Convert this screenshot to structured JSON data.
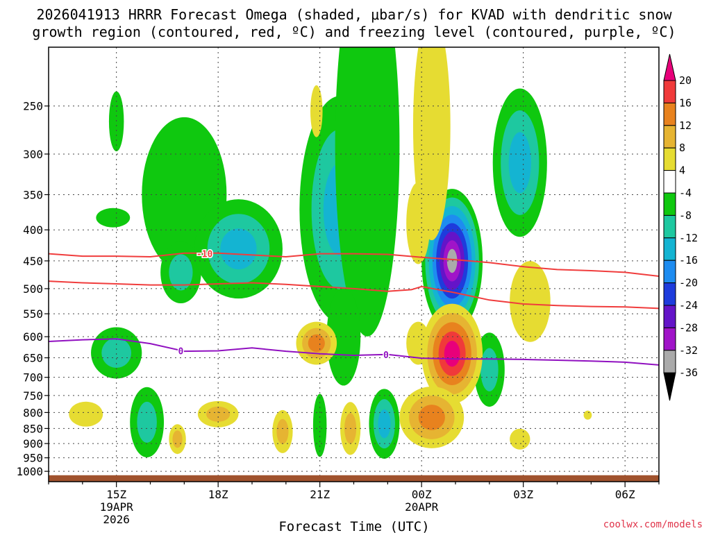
{
  "chart_data": {
    "type": "time-pressure cross section",
    "title_line1": "2026041913 HRRR Forecast Omega (shaded, μbar/s) for KVAD with dendritic snow",
    "title_line2": "growth region (contoured, red, ºC) and freezing level (contoured, purple, ºC)",
    "xlabel": "Forecast Time (UTC)",
    "credit": "coolwx.com/models",
    "x_range_hours": [
      13.0,
      31.0
    ],
    "x_ticks": [
      {
        "hour": 15,
        "label": "15Z",
        "sub1": "19APR",
        "sub2": "2026"
      },
      {
        "hour": 18,
        "label": "18Z",
        "sub1": "",
        "sub2": ""
      },
      {
        "hour": 21,
        "label": "21Z",
        "sub1": "",
        "sub2": ""
      },
      {
        "hour": 24,
        "label": "00Z",
        "sub1": "20APR",
        "sub2": ""
      },
      {
        "hour": 27,
        "label": "03Z",
        "sub1": "",
        "sub2": ""
      },
      {
        "hour": 30,
        "label": "06Z",
        "sub1": "",
        "sub2": ""
      }
    ],
    "y_range_hpa": [
      1040,
      200
    ],
    "y_ticks": [
      {
        "p": 250,
        "label": "250"
      },
      {
        "p": 300,
        "label": "300"
      },
      {
        "p": 350,
        "label": "350"
      },
      {
        "p": 400,
        "label": "400"
      },
      {
        "p": 450,
        "label": "450"
      },
      {
        "p": 500,
        "label": "500"
      },
      {
        "p": 550,
        "label": "550"
      },
      {
        "p": 600,
        "label": "600"
      },
      {
        "p": 650,
        "label": "650"
      },
      {
        "p": 700,
        "label": "700"
      },
      {
        "p": 750,
        "label": "750"
      },
      {
        "p": 800,
        "label": "800"
      },
      {
        "p": 850,
        "label": "850"
      },
      {
        "p": 900,
        "label": "900"
      },
      {
        "p": 950,
        "label": "950"
      },
      {
        "p": 1000,
        "label": "1000"
      }
    ],
    "ground_pressure_hpa": 1015,
    "colorbar": [
      {
        "color": "#e8007a",
        "label": "20"
      },
      {
        "color": "#f03a3a",
        "label": "16"
      },
      {
        "color": "#e8821e",
        "label": "12"
      },
      {
        "color": "#e6b432",
        "label": "8"
      },
      {
        "color": "#e6dc32",
        "label": "4"
      },
      {
        "color": "#ffffff",
        "label": "-4"
      },
      {
        "color": "#0fc80f",
        "label": "-8"
      },
      {
        "color": "#1ec8a0",
        "label": "-12"
      },
      {
        "color": "#14b4d2",
        "label": "-16"
      },
      {
        "color": "#1e8cf0",
        "label": "-20"
      },
      {
        "color": "#1e3cdc",
        "label": "-24"
      },
      {
        "color": "#6414c8",
        "label": "-28"
      },
      {
        "color": "#a014c8",
        "label": "-32"
      },
      {
        "color": "#aaaaaa",
        "label": "-36"
      },
      {
        "color": "#000000",
        "label": ""
      }
    ],
    "contours": [
      {
        "name": "dgz-10C",
        "color": "#f03c3c",
        "label": "-10",
        "label_hour": 17.6,
        "points": [
          [
            13.0,
            438
          ],
          [
            14.0,
            442
          ],
          [
            15.0,
            442
          ],
          [
            16.0,
            443
          ],
          [
            17.0,
            437
          ],
          [
            18.0,
            437
          ],
          [
            19.0,
            440
          ],
          [
            20.0,
            443
          ],
          [
            21.0,
            438
          ],
          [
            22.0,
            438
          ],
          [
            23.0,
            439
          ],
          [
            24.0,
            444
          ],
          [
            25.0,
            448
          ],
          [
            26.0,
            453
          ],
          [
            27.0,
            460
          ],
          [
            28.0,
            465
          ],
          [
            29.0,
            467
          ],
          [
            30.0,
            470
          ],
          [
            31.0,
            477
          ]
        ]
      },
      {
        "name": "dgz-16C",
        "color": "#f03c3c",
        "label": "",
        "label_hour": 0,
        "points": [
          [
            13.0,
            486
          ],
          [
            14.0,
            489
          ],
          [
            15.0,
            491
          ],
          [
            16.0,
            493
          ],
          [
            17.0,
            493
          ],
          [
            18.0,
            491
          ],
          [
            19.0,
            489
          ],
          [
            20.0,
            492
          ],
          [
            21.0,
            496
          ],
          [
            22.0,
            500
          ],
          [
            23.0,
            505
          ],
          [
            23.7,
            502
          ],
          [
            24.0,
            496
          ],
          [
            25.0,
            508
          ],
          [
            26.0,
            522
          ],
          [
            27.0,
            530
          ],
          [
            28.0,
            533
          ],
          [
            29.0,
            535
          ],
          [
            30.0,
            536
          ],
          [
            31.0,
            539
          ]
        ]
      },
      {
        "name": "freezing-level-0C",
        "color": "#9010c0",
        "label": "0",
        "label_hour": 16.9,
        "points": [
          [
            13.0,
            611
          ],
          [
            14.0,
            607
          ],
          [
            15.0,
            605
          ],
          [
            16.0,
            616
          ],
          [
            17.0,
            634
          ],
          [
            18.0,
            633
          ],
          [
            19.0,
            626
          ],
          [
            20.0,
            634
          ],
          [
            21.0,
            640
          ],
          [
            22.0,
            644
          ],
          [
            23.0,
            642
          ],
          [
            24.0,
            651
          ],
          [
            25.0,
            653
          ],
          [
            26.0,
            653
          ],
          [
            27.0,
            654
          ],
          [
            28.0,
            656
          ],
          [
            29.0,
            658
          ],
          [
            30.0,
            661
          ],
          [
            31.0,
            668
          ]
        ]
      }
    ],
    "contour_labels": [
      {
        "text": "-10",
        "hour": 17.6,
        "p": 438,
        "color": "#f03c3c"
      },
      {
        "text": "0",
        "hour": 16.9,
        "p": 633,
        "color": "#9010c0"
      },
      {
        "text": "0",
        "hour": 22.95,
        "p": 642,
        "color": "#9010c0"
      }
    ],
    "omega_blobs": [
      {
        "cx": 15.0,
        "p": 265,
        "rx": 0.22,
        "ry": 30,
        "levels": [
          -4
        ]
      },
      {
        "cx": 14.9,
        "p": 382,
        "rx": 0.5,
        "ry": 14,
        "levels": [
          -4
        ]
      },
      {
        "cx": 15.0,
        "p": 638,
        "rx": 0.75,
        "ry": 62,
        "levels": [
          -4,
          -8
        ]
      },
      {
        "cx": 17.0,
        "p": 350,
        "rx": 1.25,
        "ry": 100,
        "levels": [
          -4
        ]
      },
      {
        "cx": 16.9,
        "p": 470,
        "rx": 0.6,
        "ry": 55,
        "levels": [
          -4,
          -8
        ]
      },
      {
        "cx": 18.6,
        "p": 430,
        "rx": 1.3,
        "ry": 80,
        "levels": [
          -4,
          -8,
          -12
        ]
      },
      {
        "cx": 15.9,
        "p": 830,
        "rx": 0.5,
        "ry": 110,
        "levels": [
          -4,
          -8
        ]
      },
      {
        "cx": 21.6,
        "p": 370,
        "rx": 1.2,
        "ry": 150,
        "levels": [
          -4,
          -8,
          -12
        ]
      },
      {
        "cx": 22.4,
        "p": 290,
        "rx": 0.95,
        "ry": 180,
        "levels": [
          -4
        ]
      },
      {
        "cx": 21.7,
        "p": 600,
        "rx": 0.5,
        "ry": 110,
        "levels": [
          -4
        ]
      },
      {
        "cx": 21.0,
        "p": 840,
        "rx": 0.2,
        "ry": 100,
        "levels": [
          -4
        ]
      },
      {
        "cx": 22.9,
        "p": 835,
        "rx": 0.45,
        "ry": 110,
        "levels": [
          -4,
          -8,
          -12
        ]
      },
      {
        "cx": 24.9,
        "p": 450,
        "rx": 0.9,
        "ry": 120,
        "levels": [
          -4,
          -8,
          -12,
          -16,
          -20,
          -24,
          -28,
          -32
        ]
      },
      {
        "cx": 26.9,
        "p": 310,
        "rx": 0.8,
        "ry": 85,
        "levels": [
          -4,
          -8,
          -12
        ]
      },
      {
        "cx": 26.0,
        "p": 680,
        "rx": 0.45,
        "ry": 95,
        "levels": [
          -4,
          -8
        ]
      },
      {
        "cx": 14.1,
        "p": 805,
        "rx": 0.5,
        "ry": 38,
        "levels": [
          4
        ]
      },
      {
        "cx": 16.8,
        "p": 885,
        "rx": 0.25,
        "ry": 50,
        "levels": [
          4,
          8
        ]
      },
      {
        "cx": 18.0,
        "p": 805,
        "rx": 0.6,
        "ry": 40,
        "levels": [
          4,
          8
        ]
      },
      {
        "cx": 19.9,
        "p": 860,
        "rx": 0.3,
        "ry": 70,
        "levels": [
          4,
          8
        ]
      },
      {
        "cx": 20.9,
        "p": 255,
        "rx": 0.18,
        "ry": 25,
        "levels": [
          4
        ]
      },
      {
        "cx": 21.9,
        "p": 850,
        "rx": 0.3,
        "ry": 85,
        "levels": [
          4,
          8
        ]
      },
      {
        "cx": 20.9,
        "p": 615,
        "rx": 0.6,
        "ry": 50,
        "levels": [
          4,
          8,
          12
        ]
      },
      {
        "cx": 23.9,
        "p": 390,
        "rx": 0.35,
        "ry": 60,
        "levels": [
          4
        ]
      },
      {
        "cx": 23.9,
        "p": 615,
        "rx": 0.35,
        "ry": 50,
        "levels": [
          4
        ]
      },
      {
        "cx": 24.3,
        "p": 270,
        "rx": 0.55,
        "ry": 110,
        "levels": [
          4
        ]
      },
      {
        "cx": 24.9,
        "p": 640,
        "rx": 0.9,
        "ry": 120,
        "levels": [
          4,
          8,
          12,
          16,
          20
        ]
      },
      {
        "cx": 24.3,
        "p": 815,
        "rx": 0.95,
        "ry": 95,
        "levels": [
          4,
          8,
          12
        ]
      },
      {
        "cx": 27.2,
        "p": 525,
        "rx": 0.6,
        "ry": 80,
        "levels": [
          4
        ]
      },
      {
        "cx": 26.9,
        "p": 885,
        "rx": 0.3,
        "ry": 35,
        "levels": [
          4
        ]
      },
      {
        "cx": 28.9,
        "p": 808,
        "rx": 0.12,
        "ry": 14,
        "levels": [
          4
        ]
      }
    ]
  }
}
